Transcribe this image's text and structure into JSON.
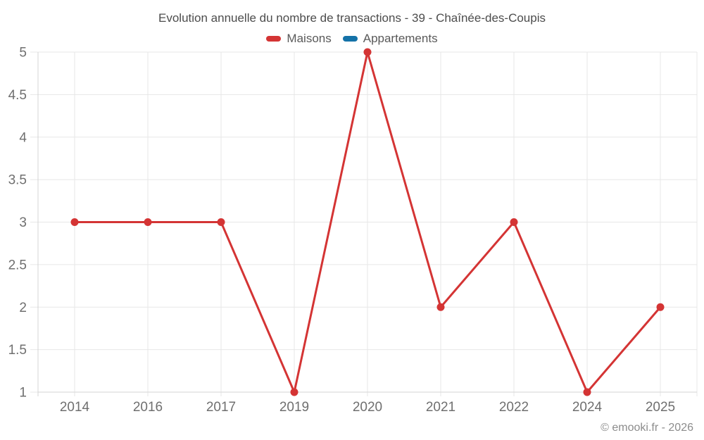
{
  "chart_data": {
    "type": "line",
    "title": "Evolution annuelle du nombre de transactions - 39 - Chaînée-des-Coupis",
    "categories": [
      "2014",
      "2016",
      "2017",
      "2019",
      "2020",
      "2021",
      "2022",
      "2024",
      "2025"
    ],
    "series": [
      {
        "name": "Maisons",
        "color": "#d43434",
        "values": [
          3,
          3,
          3,
          1,
          5,
          2,
          3,
          1,
          2
        ]
      },
      {
        "name": "Appartements",
        "color": "#1472a8",
        "values": []
      }
    ],
    "xlabel": "",
    "ylabel": "",
    "ylim": [
      1,
      5
    ],
    "yticks": [
      1,
      1.5,
      2,
      2.5,
      3,
      3.5,
      4,
      4.5,
      5
    ],
    "grid": true,
    "legend_position": "top"
  },
  "footer": {
    "copyright": "© emooki.fr - 2026"
  },
  "colors": {
    "background": "#ffffff",
    "grid": "#e7e7e7",
    "axis": "#d4d4d4",
    "tick_label": "#6f6f6f",
    "title_text": "#4c4c4c",
    "legend_text": "#595959",
    "copyright_text": "#8c8c8c"
  }
}
